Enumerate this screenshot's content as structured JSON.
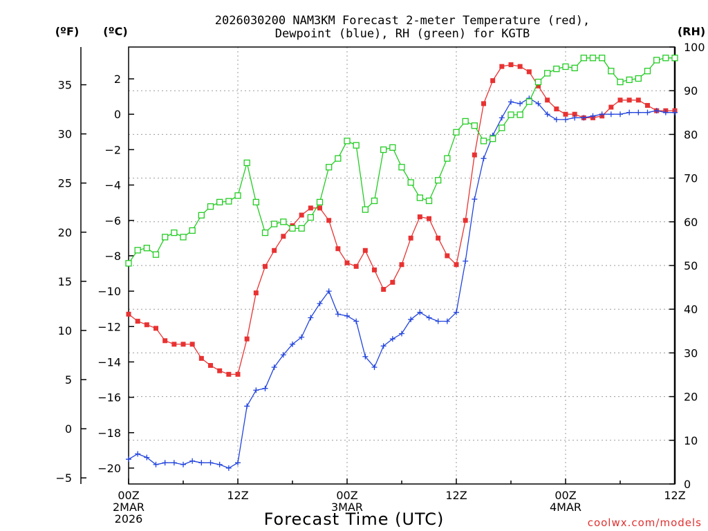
{
  "chart_data": {
    "type": "line",
    "title_line1": "2026030200 NAM3KM Forecast 2-meter Temperature (red),",
    "title_line2": "Dewpoint (blue), RH (green) for KGTB",
    "xlabel": "Forecast Time (UTC)",
    "credit": "coolwx.com/models",
    "unit_f": "(ºF)",
    "unit_c": "(ºC)",
    "unit_rh": "(RH)",
    "xlim": [
      0,
      60
    ],
    "ylim_c": [
      -20.9,
      3.8
    ],
    "ylim_rh": [
      0,
      100
    ],
    "x_ticks": [
      {
        "x": 0,
        "lines": [
          "00Z",
          "2MAR",
          "2026"
        ]
      },
      {
        "x": 12,
        "lines": [
          "12Z"
        ]
      },
      {
        "x": 24,
        "lines": [
          "00Z",
          "3MAR"
        ]
      },
      {
        "x": 36,
        "lines": [
          "12Z"
        ]
      },
      {
        "x": 48,
        "lines": [
          "00Z",
          "4MAR"
        ]
      },
      {
        "x": 60,
        "lines": [
          "12Z"
        ]
      }
    ],
    "celsius_ticks": [
      {
        "v": 2,
        "label": "2"
      },
      {
        "v": 0,
        "label": "0"
      },
      {
        "v": -2,
        "label": "−2"
      },
      {
        "v": -4,
        "label": "−4"
      },
      {
        "v": -6,
        "label": "−6"
      },
      {
        "v": -8,
        "label": "−8"
      },
      {
        "v": -10,
        "label": "−10"
      },
      {
        "v": -12,
        "label": "−12"
      },
      {
        "v": -14,
        "label": "−14"
      },
      {
        "v": -16,
        "label": "−16"
      },
      {
        "v": -18,
        "label": "−18"
      },
      {
        "v": -20,
        "label": "−20"
      }
    ],
    "fahrenheit_ticks": [
      {
        "v": 35,
        "label": "35"
      },
      {
        "v": 30,
        "label": "30"
      },
      {
        "v": 25,
        "label": "25"
      },
      {
        "v": 20,
        "label": "20"
      },
      {
        "v": 15,
        "label": "15"
      },
      {
        "v": 10,
        "label": "10"
      },
      {
        "v": 5,
        "label": "5"
      },
      {
        "v": 0,
        "label": "0"
      },
      {
        "v": -5,
        "label": "−5"
      }
    ],
    "rh_ticks": [
      {
        "v": 100,
        "label": "100"
      },
      {
        "v": 90,
        "label": "90"
      },
      {
        "v": 80,
        "label": "80"
      },
      {
        "v": 70,
        "label": "70"
      },
      {
        "v": 60,
        "label": "60"
      },
      {
        "v": 50,
        "label": "50"
      },
      {
        "v": 40,
        "label": "40"
      },
      {
        "v": 30,
        "label": "30"
      },
      {
        "v": 20,
        "label": "20"
      },
      {
        "v": 10,
        "label": "10"
      },
      {
        "v": 0,
        "label": "0"
      }
    ],
    "series": [
      {
        "name": "2-meter Temperature",
        "color": "#e83232",
        "marker": "filled-square",
        "axis": "celsius",
        "x": [
          0,
          1,
          2,
          3,
          4,
          5,
          6,
          7,
          8,
          9,
          10,
          11,
          12,
          13,
          14,
          15,
          16,
          17,
          18,
          19,
          20,
          21,
          22,
          23,
          24,
          25,
          26,
          27,
          28,
          29,
          30,
          31,
          32,
          33,
          34,
          35,
          36,
          37,
          38,
          39,
          40,
          41,
          42,
          43,
          44,
          45,
          46,
          47,
          48,
          49,
          50,
          51,
          52,
          53,
          54,
          55,
          56,
          57,
          58,
          59,
          60
        ],
        "values": [
          -11.3,
          -11.7,
          -11.9,
          -12.1,
          -12.8,
          -13.0,
          -13.0,
          -13.0,
          -13.8,
          -14.2,
          -14.5,
          -14.7,
          -14.7,
          -12.7,
          -10.1,
          -8.6,
          -7.7,
          -6.9,
          -6.3,
          -5.7,
          -5.3,
          -5.3,
          -6.0,
          -7.6,
          -8.4,
          -8.6,
          -7.7,
          -8.8,
          -9.9,
          -9.5,
          -8.5,
          -7.0,
          -5.8,
          -5.9,
          -7.0,
          -8.0,
          -8.5,
          -6.0,
          -2.3,
          0.6,
          1.9,
          2.7,
          2.8,
          2.7,
          2.4,
          1.6,
          0.8,
          0.3,
          0.0,
          0.0,
          -0.2,
          -0.2,
          -0.1,
          0.4,
          0.8,
          0.8,
          0.8,
          0.5,
          0.2,
          0.2,
          0.2
        ]
      },
      {
        "name": "Dewpoint",
        "color": "#2244dd",
        "marker": "plus",
        "axis": "celsius",
        "x": [
          0,
          1,
          2,
          3,
          4,
          5,
          6,
          7,
          8,
          9,
          10,
          11,
          12,
          13,
          14,
          15,
          16,
          17,
          18,
          19,
          20,
          21,
          22,
          23,
          24,
          25,
          26,
          27,
          28,
          29,
          30,
          31,
          32,
          33,
          34,
          35,
          36,
          37,
          38,
          39,
          40,
          41,
          42,
          43,
          44,
          45,
          46,
          47,
          48,
          49,
          50,
          51,
          52,
          53,
          54,
          55,
          56,
          57,
          58,
          59,
          60
        ],
        "values": [
          -19.5,
          -19.2,
          -19.4,
          -19.8,
          -19.7,
          -19.7,
          -19.8,
          -19.6,
          -19.7,
          -19.7,
          -19.8,
          -20.0,
          -19.7,
          -16.5,
          -15.6,
          -15.5,
          -14.3,
          -13.6,
          -13.0,
          -12.6,
          -11.5,
          -10.7,
          -10.0,
          -11.3,
          -11.4,
          -11.7,
          -13.7,
          -14.3,
          -13.1,
          -12.7,
          -12.4,
          -11.6,
          -11.2,
          -11.5,
          -11.7,
          -11.7,
          -11.2,
          -8.3,
          -4.8,
          -2.5,
          -1.2,
          -0.2,
          0.7,
          0.6,
          0.9,
          0.6,
          0.0,
          -0.3,
          -0.3,
          -0.2,
          -0.2,
          -0.1,
          0.0,
          0.0,
          0.0,
          0.1,
          0.1,
          0.1,
          0.2,
          0.1,
          0.1
        ]
      },
      {
        "name": "RH",
        "color": "#22cc22",
        "marker": "open-square",
        "axis": "rh",
        "x": [
          0,
          1,
          2,
          3,
          4,
          5,
          6,
          7,
          8,
          9,
          10,
          11,
          12,
          13,
          14,
          15,
          16,
          17,
          18,
          19,
          20,
          21,
          22,
          23,
          24,
          25,
          26,
          27,
          28,
          29,
          30,
          31,
          32,
          33,
          34,
          35,
          36,
          37,
          38,
          39,
          40,
          41,
          42,
          43,
          44,
          45,
          46,
          47,
          48,
          49,
          50,
          51,
          52,
          53,
          54,
          55,
          56,
          57,
          58,
          59,
          60
        ],
        "values": [
          50.5,
          53.5,
          54.0,
          52.5,
          56.5,
          57.5,
          56.5,
          58.0,
          61.5,
          63.5,
          64.5,
          64.7,
          66.0,
          73.5,
          64.5,
          57.5,
          59.5,
          60.0,
          58.5,
          58.5,
          61.0,
          64.5,
          72.5,
          74.5,
          78.5,
          77.5,
          62.8,
          64.8,
          76.5,
          77.0,
          72.5,
          69.0,
          65.5,
          64.8,
          69.5,
          74.5,
          80.5,
          83.0,
          82.0,
          78.5,
          79.0,
          81.5,
          84.5,
          84.5,
          87.5,
          92.0,
          94.0,
          95.0,
          95.5,
          95.2,
          97.5,
          97.5,
          97.5,
          94.5,
          92.0,
          92.5,
          92.8,
          94.5,
          97.0,
          97.5,
          97.5
        ]
      }
    ]
  }
}
